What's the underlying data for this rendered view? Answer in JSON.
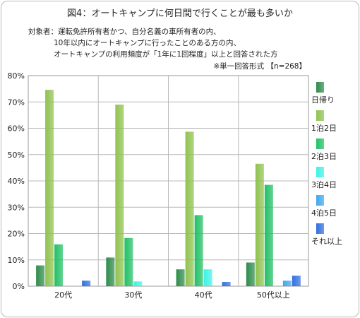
{
  "title": "図4：オートキャンプに何日間で行くことが最も多いか",
  "note": {
    "line1": "対象者：運転免許所有者かつ、自分名義の車所有者の内、",
    "line2": "10年以内にオートキャンプに行ったことのある方の内、",
    "line3": "オートキャンプの利用頻度が「1年に1回程度」以上と回答された方"
  },
  "sample_note": "※単一回答形式 【n=268】",
  "chart_data": {
    "type": "bar",
    "categories": [
      "20代",
      "30代",
      "40代",
      "50代以上"
    ],
    "series": [
      {
        "name": "日帰り",
        "color": "#2e8b4a",
        "values": [
          7.9,
          10.9,
          6.4,
          9.0
        ]
      },
      {
        "name": "1泊2日",
        "color": "#8fc24e",
        "values": [
          74.6,
          69.0,
          58.7,
          46.5
        ]
      },
      {
        "name": "2泊3日",
        "color": "#21c064",
        "values": [
          15.9,
          18.3,
          27.0,
          38.5
        ]
      },
      {
        "name": "3泊4日",
        "color": "#3df2e6",
        "values": [
          0.0,
          1.8,
          6.4,
          0.0
        ]
      },
      {
        "name": "4泊5日",
        "color": "#3fa6f0",
        "values": [
          0.0,
          0.0,
          0.0,
          2.1
        ]
      },
      {
        "name": "それ以上",
        "color": "#2f6fe0",
        "values": [
          2.1,
          0.0,
          1.6,
          4.0
        ]
      }
    ],
    "yticks": [
      "0%",
      "10%",
      "20%",
      "30%",
      "40%",
      "50%",
      "60%",
      "70%",
      "80%"
    ],
    "ylim": [
      0,
      80
    ],
    "grid": true,
    "legend_position": "right"
  }
}
